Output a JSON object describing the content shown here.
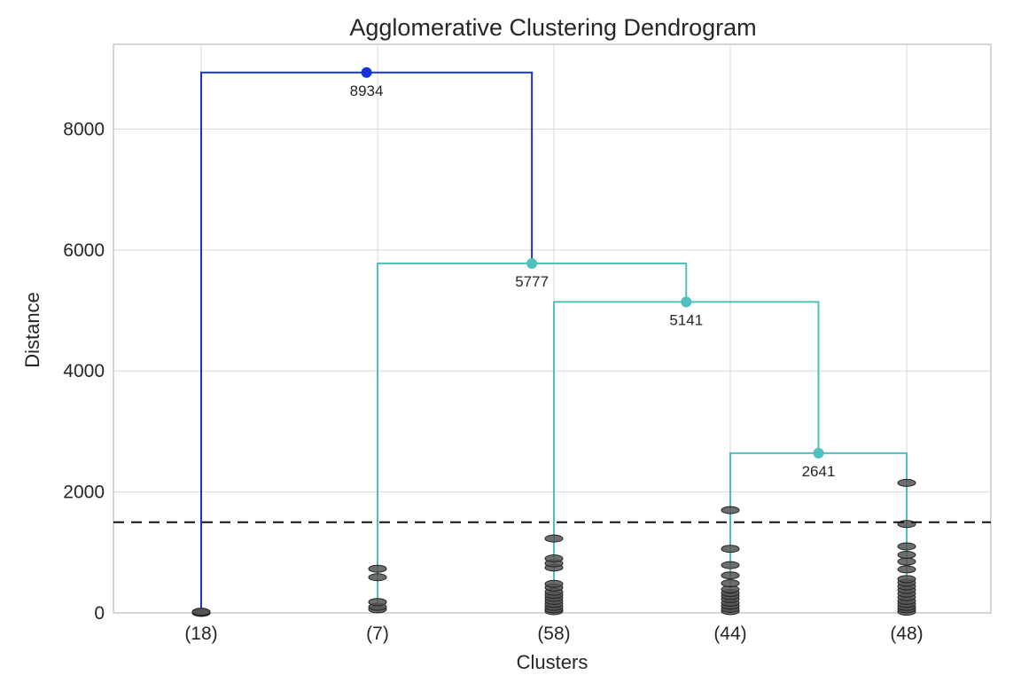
{
  "chart_data": {
    "type": "dendrogram",
    "title": "Agglomerative Clustering Dendrogram",
    "xlabel": "Clusters",
    "ylabel": "Distance",
    "ylim": [
      0,
      9400
    ],
    "yticks": [
      "0",
      "2000",
      "4000",
      "6000",
      "8000"
    ],
    "ytick_values": [
      0,
      2000,
      4000,
      6000,
      8000
    ],
    "leaves": [
      "(18)",
      "(7)",
      "(58)",
      "(44)",
      "(48)"
    ],
    "threshold": 1500,
    "threshold_style": "dashed black",
    "grid": true,
    "colors": {
      "top_link": "#1533d6",
      "cluster_link": "#4fbfbf",
      "threshold": "#111111",
      "leaf_markers": "#555555"
    },
    "merges": [
      {
        "height": 8934,
        "label": "8934",
        "color": "blue",
        "left": "(18)",
        "right": "merge-5777"
      },
      {
        "height": 5777,
        "label": "5777",
        "color": "cyan",
        "left": "(7)",
        "right": "merge-5141"
      },
      {
        "height": 5141,
        "label": "5141",
        "color": "cyan",
        "left": "(58)",
        "right": "merge-2641"
      },
      {
        "height": 2641,
        "label": "2641",
        "color": "cyan",
        "left": "(44)",
        "right": "(48)"
      }
    ],
    "leaf_points": {
      "(18)": [
        0,
        10,
        20
      ],
      "(7)": [
        60,
        100,
        180,
        590,
        730
      ],
      "(58)": [
        30,
        60,
        100,
        150,
        200,
        250,
        300,
        350,
        420,
        480,
        750,
        820,
        900,
        1230
      ],
      "(44)": [
        30,
        70,
        120,
        170,
        230,
        280,
        330,
        390,
        490,
        620,
        790,
        1060,
        1700
      ],
      "(48)": [
        20,
        60,
        100,
        150,
        200,
        260,
        320,
        380,
        440,
        500,
        560,
        720,
        850,
        960,
        1100,
        1470,
        2150
      ]
    }
  }
}
